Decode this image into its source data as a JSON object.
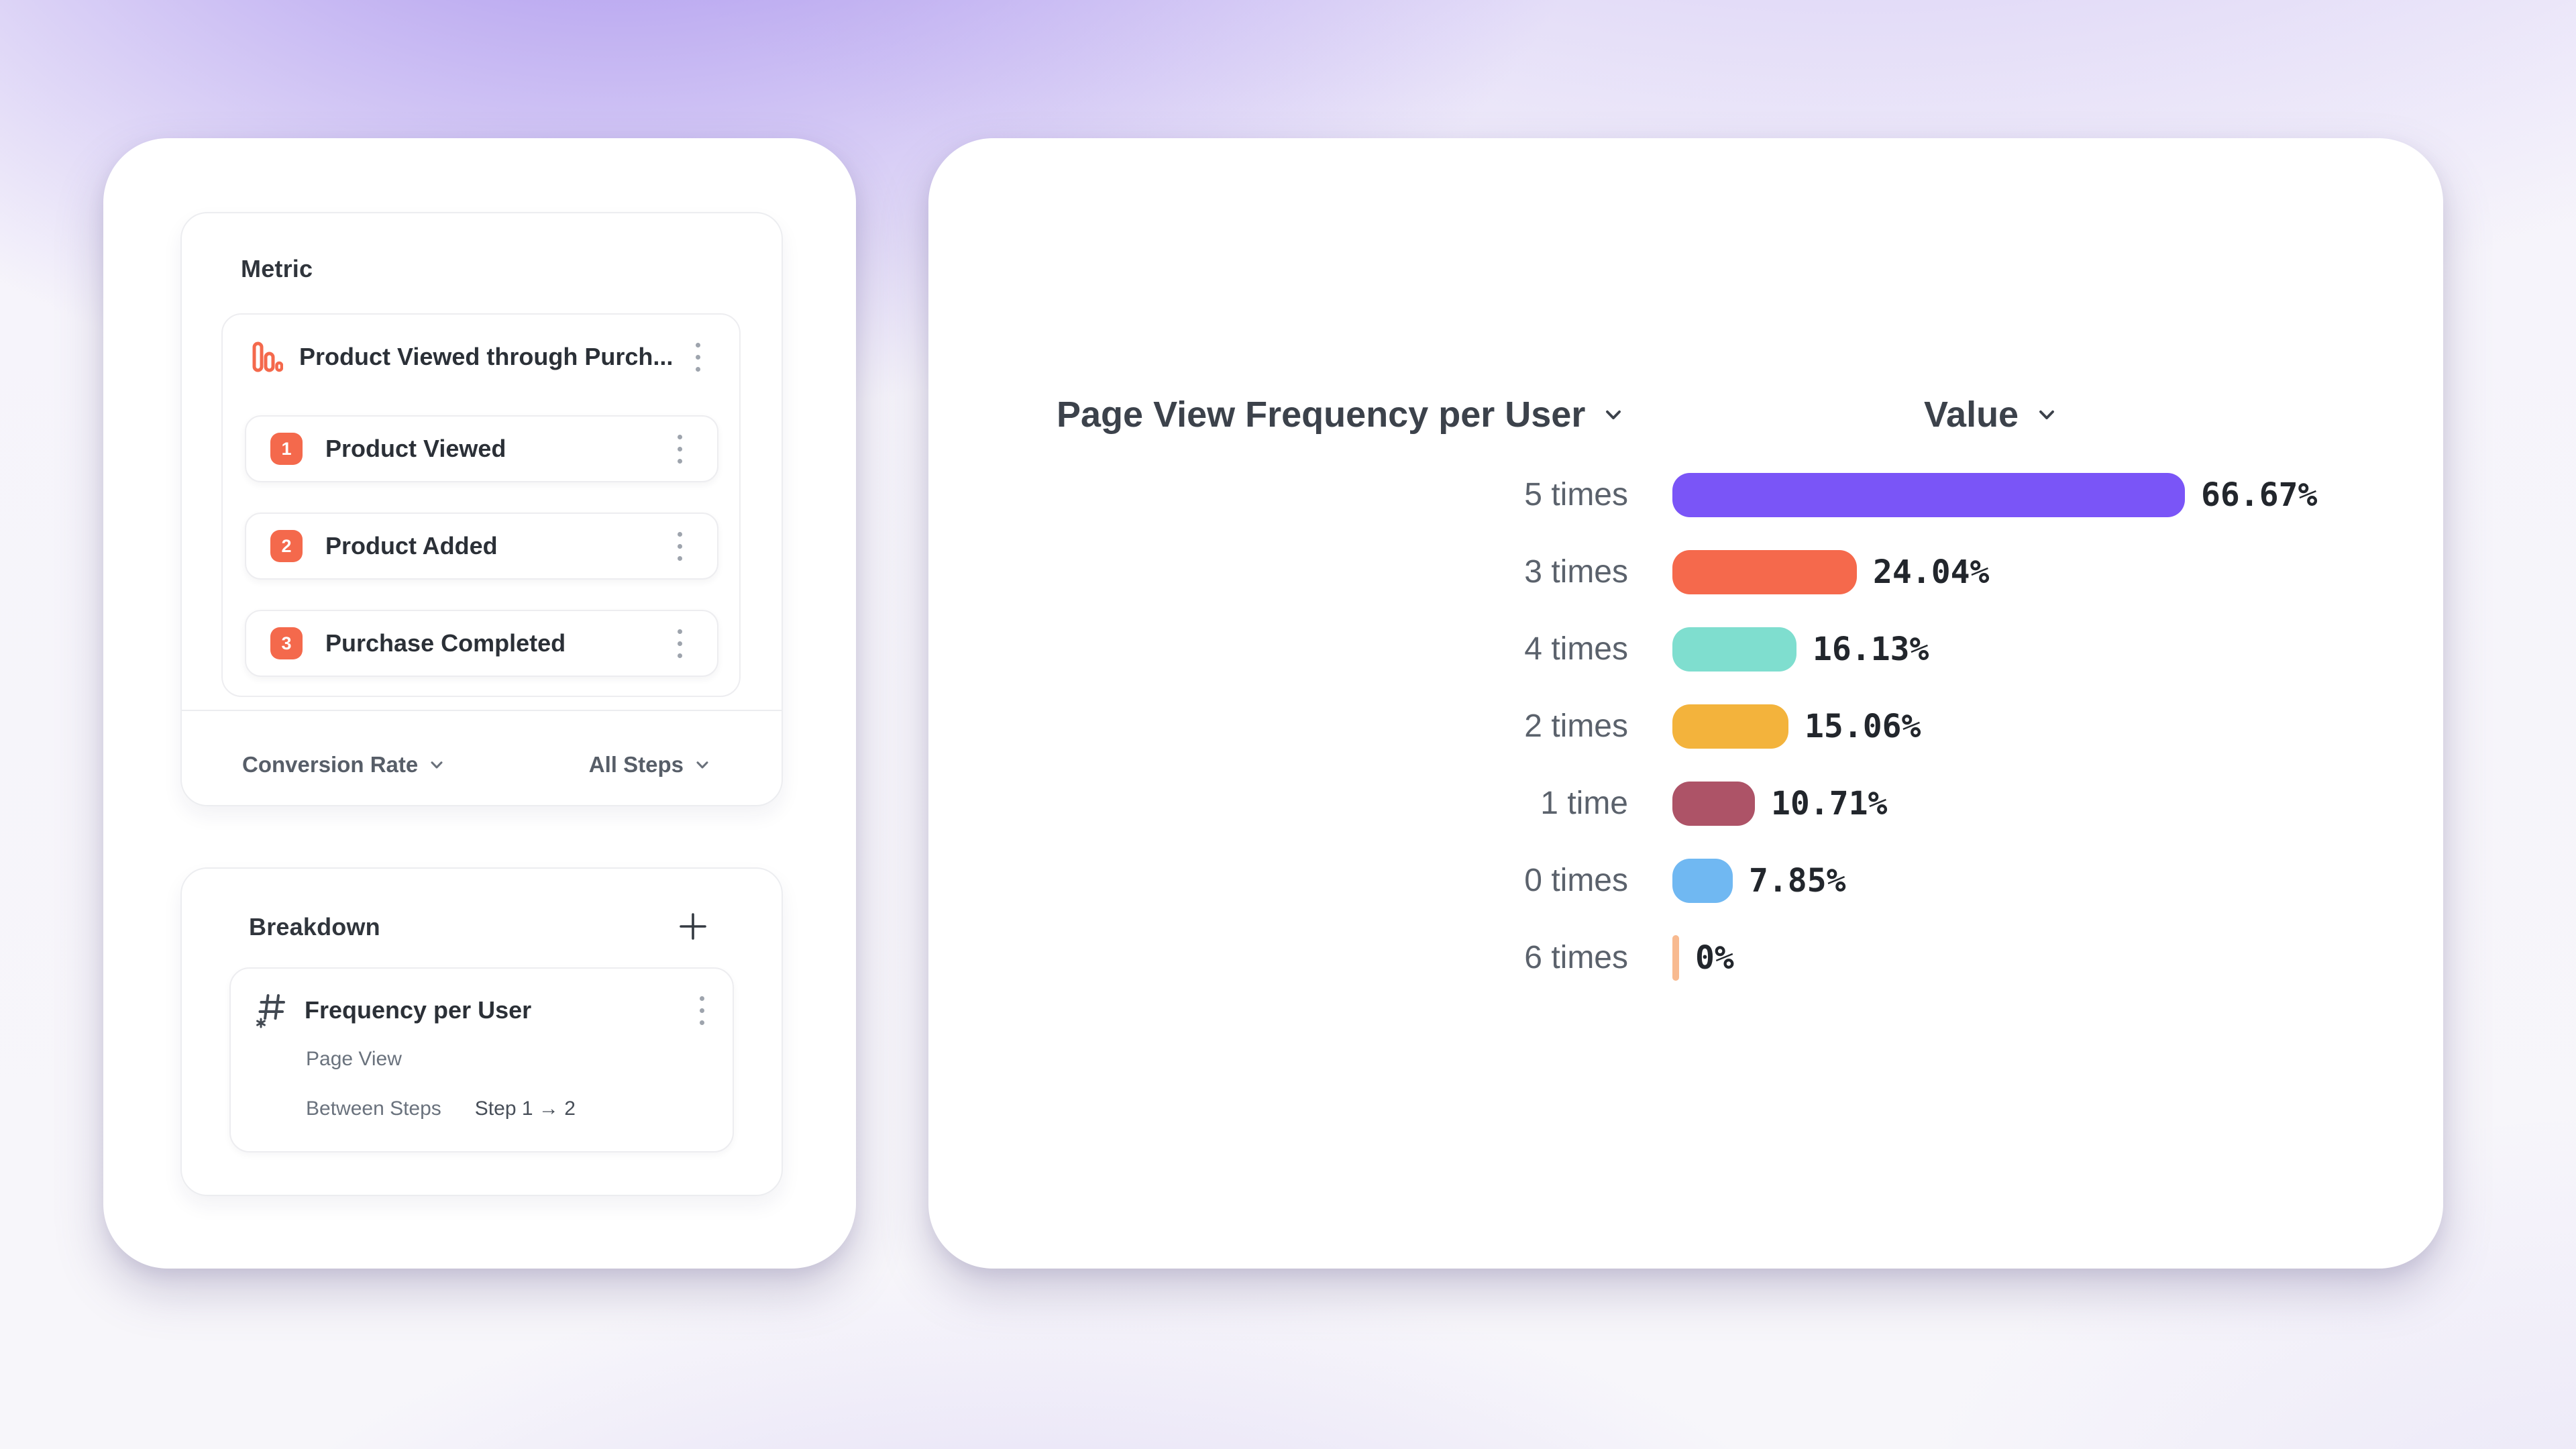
{
  "metric_panel": {
    "title": "Metric",
    "funnel_name": "Product Viewed through Purch...",
    "steps": [
      {
        "num": "1",
        "label": "Product Viewed"
      },
      {
        "num": "2",
        "label": "Product Added"
      },
      {
        "num": "3",
        "label": "Purchase Completed"
      }
    ],
    "conversion_label": "Conversion Rate",
    "steps_scope_label": "All Steps"
  },
  "breakdown_panel": {
    "title": "Breakdown",
    "item_title": "Frequency per User",
    "item_event": "Page View",
    "item_property_label": "Between Steps",
    "item_property_value": "Step 1 → 2"
  },
  "chart_header": {
    "title": "Page View Frequency per User",
    "value_label": "Value"
  },
  "icons": {
    "metric_type": "funnel-bars-icon",
    "breakdown_type": "numeric-hash-icon",
    "menu": "kebab-icon",
    "add": "plus-icon",
    "dropdown": "chevron-down-icon"
  },
  "colors": {
    "accent_orange": "#F4694C",
    "card_background": "#FFFFFF",
    "background_purple": "#9478EA"
  },
  "chart_data": {
    "type": "bar",
    "orientation": "horizontal",
    "title": "Page View Frequency per User",
    "value_header": "Value",
    "categories": [
      "5 times",
      "3 times",
      "4 times",
      "2 times",
      "1 time",
      "0 times",
      "6 times"
    ],
    "values": [
      66.67,
      24.04,
      16.13,
      15.06,
      10.71,
      7.85,
      0
    ],
    "value_labels": [
      "66.67%",
      "24.04%",
      "16.13%",
      "15.06%",
      "10.71%",
      "7.85%",
      "0%"
    ],
    "colors": [
      "#7A55F7",
      "#F5694C",
      "#7FDECF",
      "#F3B33C",
      "#AD5367",
      "#70B8F2",
      "#F8BA90"
    ],
    "xlim": [
      0,
      100
    ],
    "grid": false,
    "legend": false
  }
}
